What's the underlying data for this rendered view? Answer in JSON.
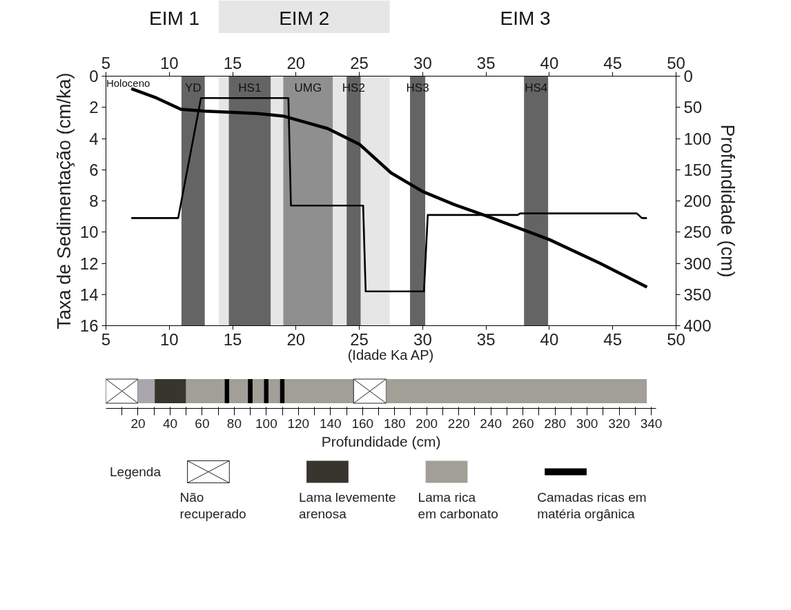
{
  "chart_data": [
    {
      "type": "line",
      "xlabel": "(Idade Ka AP)",
      "ylabel": "Taxa de Sedimentação (cm/ka)",
      "y2label": "Profundidade (cm)",
      "xlim": [
        5,
        50
      ],
      "xticks": [
        5,
        10,
        15,
        20,
        25,
        30,
        35,
        40,
        45,
        50
      ],
      "x2lim": [
        5,
        50
      ],
      "x2ticks": [
        5,
        10,
        15,
        20,
        25,
        30,
        35,
        40,
        45,
        50
      ],
      "ylim": [
        16,
        0
      ],
      "yticks": [
        0,
        2,
        4,
        6,
        8,
        10,
        12,
        14,
        16
      ],
      "y2lim": [
        400,
        0
      ],
      "y2ticks": [
        0,
        50,
        100,
        150,
        200,
        250,
        300,
        350,
        400
      ],
      "bands": [
        {
          "axis": "x2",
          "from": 13.9,
          "to": 27.4,
          "label": "EIM 2",
          "color": "#e6e6e6"
        },
        {
          "axis": "x",
          "from": 10.96,
          "to": 12.8,
          "label": "YD",
          "color": "#646464"
        },
        {
          "axis": "x",
          "from": 14.7,
          "to": 18.0,
          "label": "HS1",
          "color": "#646464"
        },
        {
          "axis": "x",
          "from": 19.0,
          "to": 22.9,
          "label": "UMG",
          "color": "#8f8f8f"
        },
        {
          "axis": "x",
          "from": 24.0,
          "to": 25.1,
          "label": "HS2",
          "color": "#646464"
        },
        {
          "axis": "x",
          "from": 29.0,
          "to": 30.2,
          "label": "HS3",
          "color": "#646464"
        },
        {
          "axis": "x",
          "from": 38.0,
          "to": 39.9,
          "label": "HS4",
          "color": "#646464"
        }
      ],
      "series": [
        {
          "color": "#000000",
          "axis": "y",
          "x": [
            7.0,
            10.7,
            12.5,
            19.4,
            19.6,
            25.3,
            25.5,
            30.1,
            30.4,
            37.5,
            37.7,
            46.9,
            47.3,
            47.7
          ],
          "values": [
            9.1,
            9.1,
            1.4,
            1.4,
            8.3,
            8.3,
            13.8,
            13.8,
            8.9,
            8.9,
            8.8,
            8.8,
            9.1,
            9.1
          ]
        },
        {
          "color": "#000000",
          "axis": "y2",
          "x": [
            7.0,
            9.0,
            10.9,
            12.8,
            15.0,
            17.0,
            19.0,
            20.4,
            22.5,
            25.0,
            27.5,
            30.0,
            32.5,
            35.0,
            40.0,
            44.0,
            47.7
          ],
          "values": [
            20,
            35,
            53,
            56,
            58,
            60,
            64,
            72,
            84,
            109,
            155,
            185,
            206,
            224,
            262,
            300,
            338
          ]
        }
      ],
      "annotations": [
        "EIM 1",
        "EIM 3",
        "Holoceno"
      ],
      "grid": false,
      "line_style": "solid"
    },
    {
      "type": "bar",
      "orientation": "horizontal",
      "stacked": true,
      "categories": [
        null
      ],
      "xlabel": "Profundidade (cm)",
      "xlim": [
        0,
        343
      ],
      "xticks": [
        {
          "value": 10,
          "label": null
        },
        20,
        {
          "value": 30,
          "label": null
        },
        40,
        {
          "value": 50,
          "label": null
        },
        60,
        {
          "value": 70,
          "label": null
        },
        80,
        {
          "value": 90,
          "label": null
        },
        100,
        {
          "value": 110,
          "label": null
        },
        120,
        {
          "value": 130,
          "label": null
        },
        140,
        {
          "value": 150,
          "label": null
        },
        160,
        {
          "value": 170,
          "label": null
        },
        180,
        {
          "value": 190,
          "label": null
        },
        200,
        {
          "value": 210,
          "label": null
        },
        220,
        {
          "value": 230,
          "label": null
        },
        240,
        {
          "value": 250,
          "label": null
        },
        260,
        {
          "value": 270,
          "label": null
        },
        280,
        {
          "value": 290,
          "label": null
        },
        300,
        {
          "value": 310,
          "label": null
        },
        320,
        {
          "value": 330,
          "label": null
        },
        340
      ],
      "legend_title": "Legenda",
      "legend": "bottom",
      "tick_labels": "x",
      "grid": false,
      "series": [
        {
          "name": "Não recuperado",
          "color": "#ffffff",
          "values": [
            20
          ]
        },
        {
          "color": "#a9a6ae",
          "values": [
            10.4
          ]
        },
        {
          "name": "Lama levemente arenosa",
          "color": "#38352e",
          "values": [
            19.6
          ]
        },
        {
          "name": "Lama rica em carbonato",
          "color": "#a19f96",
          "values": [
            24
          ]
        },
        {
          "name": "Camadas ricas em matéria orgânica",
          "color": "#000000",
          "values": [
            3
          ]
        },
        {
          "color": "#a19f96",
          "values": [
            11.5
          ]
        },
        {
          "color": "#000000",
          "values": [
            3
          ]
        },
        {
          "color": "#a19f96",
          "values": [
            7
          ]
        },
        {
          "color": "#000000",
          "values": [
            3
          ]
        },
        {
          "color": "#a19f96",
          "values": [
            7
          ]
        },
        {
          "color": "#000000",
          "values": [
            3
          ]
        },
        {
          "color": "#a19f96",
          "values": [
            42.9
          ]
        },
        {
          "color": "#ffffff",
          "values": [
            20.3
          ]
        },
        {
          "color": "#a19f96",
          "values": [
            162.5
          ]
        }
      ]
    }
  ]
}
